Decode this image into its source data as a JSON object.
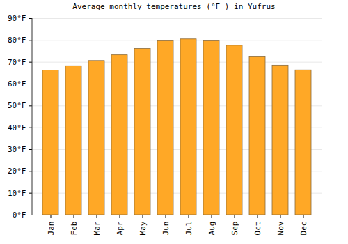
{
  "chart_data": {
    "type": "bar",
    "title": "Average monthly temperatures (°F ) in Yufrus",
    "categories": [
      "Jan",
      "Feb",
      "Mar",
      "Apr",
      "May",
      "Jun",
      "Jul",
      "Aug",
      "Sep",
      "Oct",
      "Nov",
      "Dec"
    ],
    "values": [
      66.2,
      68.2,
      70.6,
      73.2,
      76.1,
      79.6,
      80.5,
      79.6,
      77.6,
      72.3,
      68.5,
      66.3
    ],
    "color": "#ffa826",
    "ylim": [
      0,
      90
    ],
    "yticks": [
      {
        "value": 0,
        "label": "0°F"
      },
      {
        "value": 10,
        "label": "10°F"
      },
      {
        "value": 20,
        "label": "20°F"
      },
      {
        "value": 30,
        "label": "30°F"
      },
      {
        "value": 40,
        "label": "40°F"
      },
      {
        "value": 50,
        "label": "50°F"
      },
      {
        "value": 60,
        "label": "60°F"
      },
      {
        "value": 70,
        "label": "70°F"
      },
      {
        "value": 80,
        "label": "80°F"
      },
      {
        "value": 90,
        "label": "90°F"
      }
    ],
    "grid": true
  }
}
